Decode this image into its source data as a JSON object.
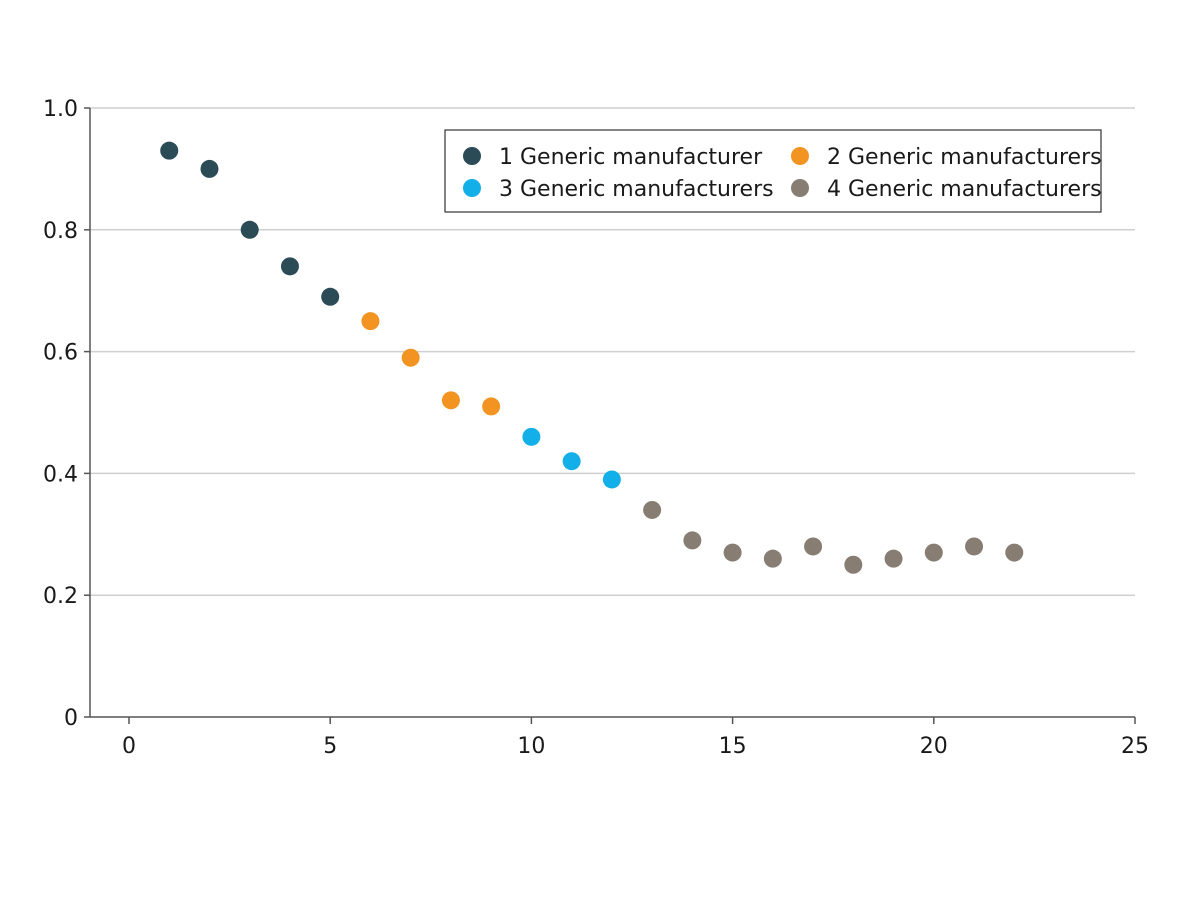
{
  "chart_data": {
    "type": "scatter",
    "title": "",
    "xlabel": "",
    "ylabel": "",
    "xlim": [
      0,
      25
    ],
    "ylim": [
      0,
      1.0
    ],
    "xticks": [
      0,
      5,
      10,
      15,
      20,
      25
    ],
    "yticks": [
      0,
      0.2,
      0.4,
      0.6,
      0.8,
      1.0
    ],
    "xtick_labels": [
      "0",
      "5",
      "10",
      "15",
      "20",
      "25"
    ],
    "ytick_labels": [
      "0",
      "0.2",
      "0.4",
      "0.6",
      "0.8",
      "1.0"
    ],
    "grid": "horizontal",
    "legend_position": "top-right",
    "series": [
      {
        "name": "1 Generic manufacturer",
        "color": "#2b4b57",
        "x": [
          1,
          2,
          3,
          4,
          5
        ],
        "y": [
          0.93,
          0.9,
          0.8,
          0.74,
          0.69
        ]
      },
      {
        "name": "2 Generic manufacturers",
        "color": "#f39422",
        "x": [
          6,
          7,
          8,
          9
        ],
        "y": [
          0.65,
          0.59,
          0.52,
          0.51
        ]
      },
      {
        "name": "3 Generic manufacturers",
        "color": "#13afe8",
        "x": [
          10,
          11,
          12
        ],
        "y": [
          0.46,
          0.42,
          0.39
        ]
      },
      {
        "name": "4 Generic manufacturers",
        "color": "#887d73",
        "x": [
          13,
          14,
          15,
          16,
          17,
          18,
          19,
          20,
          21,
          22
        ],
        "y": [
          0.34,
          0.29,
          0.27,
          0.26,
          0.28,
          0.25,
          0.26,
          0.27,
          0.28,
          0.27
        ]
      }
    ]
  }
}
